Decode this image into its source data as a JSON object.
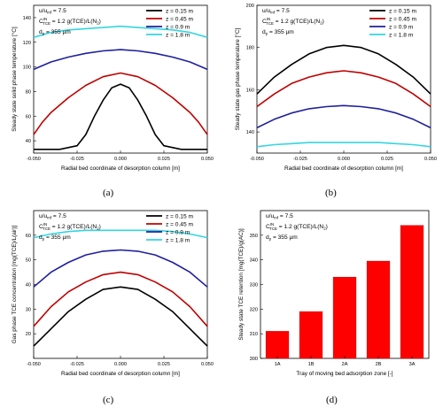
{
  "captions": [
    "(a)",
    "(b)",
    "(c)",
    "(d)"
  ],
  "notes": {
    "line1": "u/u",
    "line1_sub": "mf",
    "line1_val": " = 7.5",
    "line2_main": "C",
    "line2_sup": "IN",
    "line2_sub": "TCE",
    "line2_val": " = 1.2 g(TCE)/L(N",
    "line2_sub2": "2",
    "line2_end": ")",
    "line3_main": "d",
    "line3_sub": "p",
    "line3_val": " = 355 µm"
  },
  "chart_data": [
    {
      "type": "line",
      "xlabel": "Radial bed coordinate of desorption column [m]",
      "ylabel": "Steady state solid phase temperature [°C]",
      "xlim": [
        -0.05,
        0.05
      ],
      "ylim": [
        30,
        150
      ],
      "xticks": [
        -0.05,
        -0.025,
        0.0,
        0.025,
        0.05
      ],
      "xticklabels": [
        "-0.050",
        "-0.025",
        "0.000",
        "0.025",
        "0.050"
      ],
      "yticks": [
        40,
        60,
        80,
        100,
        120,
        140
      ],
      "yticklabels": [
        "40",
        "60",
        "80",
        "100",
        "120",
        "140"
      ],
      "legend_position": "top-right",
      "series": [
        {
          "name": "z = 0.15 m",
          "color": "#000000",
          "x": [
            -0.05,
            -0.035,
            -0.025,
            -0.02,
            -0.015,
            -0.01,
            -0.005,
            0.0,
            0.005,
            0.01,
            0.015,
            0.02,
            0.025,
            0.035,
            0.05
          ],
          "y": [
            33,
            33,
            36,
            45,
            60,
            73,
            83,
            86,
            83,
            73,
            60,
            45,
            36,
            33,
            33
          ]
        },
        {
          "name": "z = 0.45 m",
          "color": "#c00000",
          "x": [
            -0.05,
            -0.045,
            -0.04,
            -0.03,
            -0.02,
            -0.01,
            0.0,
            0.01,
            0.02,
            0.03,
            0.04,
            0.045,
            0.05
          ],
          "y": [
            45,
            55,
            63,
            75,
            85,
            92,
            95,
            92,
            85,
            75,
            63,
            55,
            45
          ]
        },
        {
          "name": "z = 0.9 m",
          "color": "#1f1f9e",
          "x": [
            -0.05,
            -0.04,
            -0.03,
            -0.02,
            -0.01,
            0.0,
            0.01,
            0.02,
            0.03,
            0.04,
            0.05
          ],
          "y": [
            98,
            104,
            108,
            111,
            113,
            114,
            113,
            111,
            108,
            104,
            98
          ]
        },
        {
          "name": "z = 1.8 m",
          "color": "#33d6e0",
          "x": [
            -0.05,
            -0.04,
            -0.03,
            -0.02,
            -0.01,
            0.0,
            0.01,
            0.02,
            0.03,
            0.04,
            0.05
          ],
          "y": [
            124,
            128,
            130,
            131,
            132,
            133,
            132,
            131,
            130,
            128,
            124
          ]
        }
      ]
    },
    {
      "type": "line",
      "xlabel": "Radial bed coordinate of desorption column [m]",
      "ylabel": "Steady state gas phase temperature [°C]",
      "xlim": [
        -0.05,
        0.05
      ],
      "ylim": [
        130,
        200
      ],
      "xticks": [
        -0.05,
        -0.025,
        0.0,
        0.025,
        0.05
      ],
      "xticklabels": [
        "-0.050",
        "-0.025",
        "0.000",
        "0.025",
        "0.050"
      ],
      "yticks": [
        140,
        160,
        180,
        200
      ],
      "yticklabels": [
        "140",
        "160",
        "180",
        "200"
      ],
      "legend_position": "top-right",
      "series": [
        {
          "name": "z = 0.15 m",
          "color": "#000000",
          "x": [
            -0.05,
            -0.04,
            -0.03,
            -0.02,
            -0.01,
            0.0,
            0.01,
            0.02,
            0.03,
            0.04,
            0.05
          ],
          "y": [
            158,
            166,
            172,
            177,
            180,
            181,
            180,
            177,
            172,
            166,
            158
          ]
        },
        {
          "name": "z = 0.45 m",
          "color": "#c00000",
          "x": [
            -0.05,
            -0.04,
            -0.03,
            -0.02,
            -0.01,
            0.0,
            0.01,
            0.02,
            0.03,
            0.04,
            0.05
          ],
          "y": [
            152,
            158,
            163,
            166,
            168,
            169,
            168,
            166,
            163,
            158,
            152
          ]
        },
        {
          "name": "z = 0.9 m",
          "color": "#1f1f9e",
          "x": [
            -0.05,
            -0.04,
            -0.03,
            -0.02,
            -0.01,
            0.0,
            0.01,
            0.02,
            0.03,
            0.04,
            0.05
          ],
          "y": [
            142,
            146,
            149,
            151,
            152,
            152.5,
            152,
            151,
            149,
            146,
            142
          ]
        },
        {
          "name": "z = 1.8 m",
          "color": "#33d6e0",
          "x": [
            -0.05,
            -0.04,
            -0.03,
            -0.02,
            -0.01,
            0.0,
            0.01,
            0.02,
            0.03,
            0.04,
            0.05
          ],
          "y": [
            133,
            134,
            134.5,
            135,
            135,
            135,
            135,
            135,
            134.5,
            134,
            133
          ]
        }
      ]
    },
    {
      "type": "line",
      "xlabel": "Radial bed coordinate of desorption column [m]",
      "ylabel": "Gas phase TCE concentration [mg(TCE)/L(air)]",
      "xlim": [
        -0.05,
        0.05
      ],
      "ylim": [
        10,
        70
      ],
      "xticks": [
        -0.05,
        -0.025,
        0.0,
        0.025,
        0.05
      ],
      "xticklabels": [
        "-0.050",
        "-0.025",
        "0.000",
        "0.025",
        "0.050"
      ],
      "yticks": [
        20,
        30,
        40,
        50,
        60
      ],
      "yticklabels": [
        "20",
        "30",
        "40",
        "50",
        "60"
      ],
      "legend_position": "top-right",
      "series": [
        {
          "name": "z = 0.15 m",
          "color": "#000000",
          "x": [
            -0.05,
            -0.04,
            -0.03,
            -0.02,
            -0.01,
            0.0,
            0.01,
            0.02,
            0.03,
            0.04,
            0.05
          ],
          "y": [
            15,
            22,
            29,
            34,
            38,
            39,
            38,
            34,
            29,
            22,
            15
          ]
        },
        {
          "name": "z = 0.45 m",
          "color": "#c00000",
          "x": [
            -0.05,
            -0.04,
            -0.03,
            -0.02,
            -0.01,
            0.0,
            0.01,
            0.02,
            0.03,
            0.04,
            0.05
          ],
          "y": [
            23,
            31,
            37,
            41,
            44,
            45,
            44,
            41,
            37,
            31,
            23
          ]
        },
        {
          "name": "z = 0.9 m",
          "color": "#1f1f9e",
          "x": [
            -0.05,
            -0.04,
            -0.03,
            -0.02,
            -0.01,
            0.0,
            0.01,
            0.02,
            0.03,
            0.04,
            0.05
          ],
          "y": [
            39,
            45,
            49,
            52,
            53.5,
            54,
            53.5,
            52,
            49,
            45,
            39
          ]
        },
        {
          "name": "z = 1.8 m",
          "color": "#33d6e0",
          "x": [
            -0.05,
            -0.04,
            -0.03,
            -0.02,
            -0.01,
            0.0,
            0.01,
            0.02,
            0.03,
            0.04,
            0.05
          ],
          "y": [
            59,
            60.5,
            61.5,
            62,
            62,
            62,
            62,
            62,
            61.5,
            60.5,
            59
          ]
        }
      ]
    },
    {
      "type": "bar",
      "xlabel": "Tray of moving bed adsorption zone [-]",
      "ylabel": "Steady state TCE retention [mg(TCE)/g(AC)]",
      "categories": [
        "1A",
        "1B",
        "2A",
        "2B",
        "3A"
      ],
      "values": [
        311,
        319,
        333,
        339.5,
        354
      ],
      "ylim": [
        300,
        360
      ],
      "yticks": [
        300,
        310,
        320,
        330,
        340,
        350
      ],
      "yticklabels": [
        "300",
        "310",
        "320",
        "330",
        "340",
        "350"
      ],
      "bar_color": "#ff0000"
    }
  ]
}
